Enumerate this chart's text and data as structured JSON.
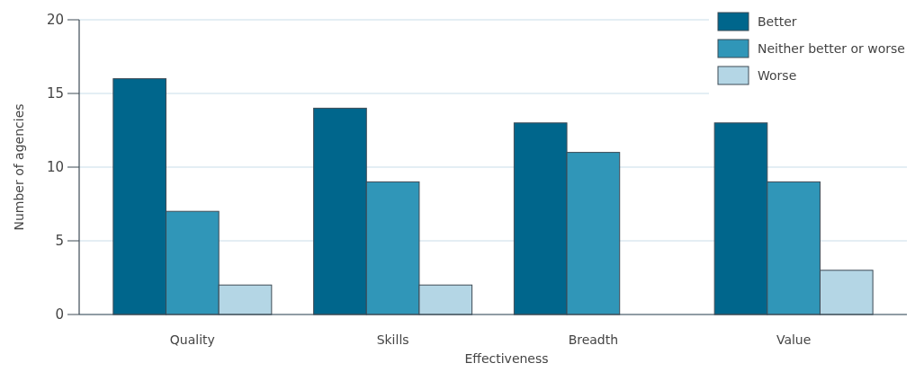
{
  "chart_data": {
    "type": "bar",
    "xlabel": "Effectiveness",
    "ylabel": "Number of agencies",
    "categories": [
      "Quality",
      "Skills",
      "Breadth",
      "Value"
    ],
    "series": [
      {
        "name": "Better",
        "color": "#00668c",
        "values": [
          16,
          14,
          13,
          13
        ]
      },
      {
        "name": "Neither better or worse",
        "color": "#3096b8",
        "values": [
          7,
          9,
          11,
          9
        ]
      },
      {
        "name": "Worse",
        "color": "#b4d6e5",
        "values": [
          2,
          2,
          0,
          3
        ]
      }
    ],
    "ylim": [
      0,
      20
    ],
    "yticks": [
      0,
      5,
      10,
      15,
      20
    ],
    "grid": "y",
    "legend": "top right"
  }
}
